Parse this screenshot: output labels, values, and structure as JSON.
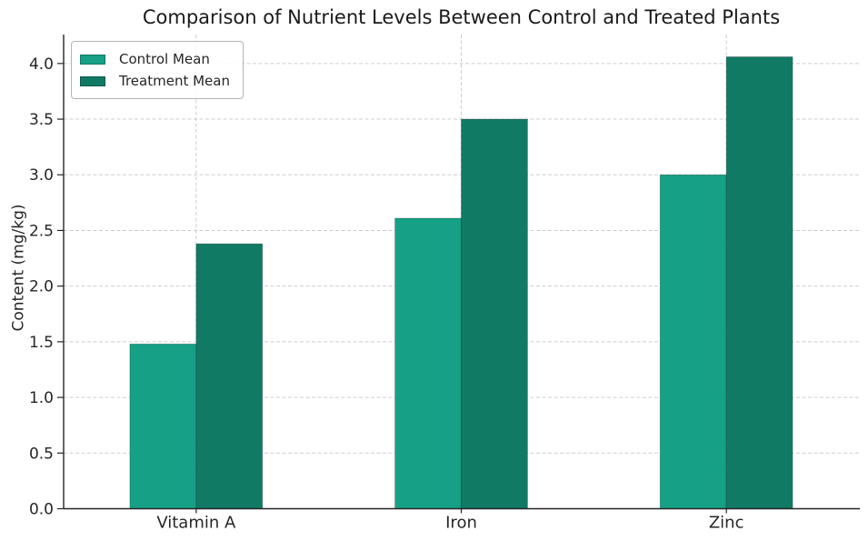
{
  "chart_data": {
    "type": "bar",
    "title": "Comparison of Nutrient Levels Between Control and Treated Plants",
    "xlabel": "",
    "ylabel": "Content (mg/kg)",
    "categories": [
      "Vitamin A",
      "Iron",
      "Zinc"
    ],
    "series": [
      {
        "name": "Control Mean",
        "color": "#16a085",
        "values": [
          1.48,
          2.61,
          3.0
        ]
      },
      {
        "name": "Treatment Mean",
        "color": "#117a65",
        "values": [
          2.38,
          3.5,
          4.06
        ]
      }
    ],
    "ylim": [
      0,
      4.26
    ],
    "yticks": [
      0.0,
      0.5,
      1.0,
      1.5,
      2.0,
      2.5,
      3.0,
      3.5,
      4.0
    ],
    "bar_width_units": 0.25,
    "grid": "dashed, horizontal at every 0.5 and vertical at category centers",
    "grid_color": "#cdcdcd",
    "axis_color": "#262626",
    "legend_position": "upper left",
    "background_color": "#ffffff"
  }
}
